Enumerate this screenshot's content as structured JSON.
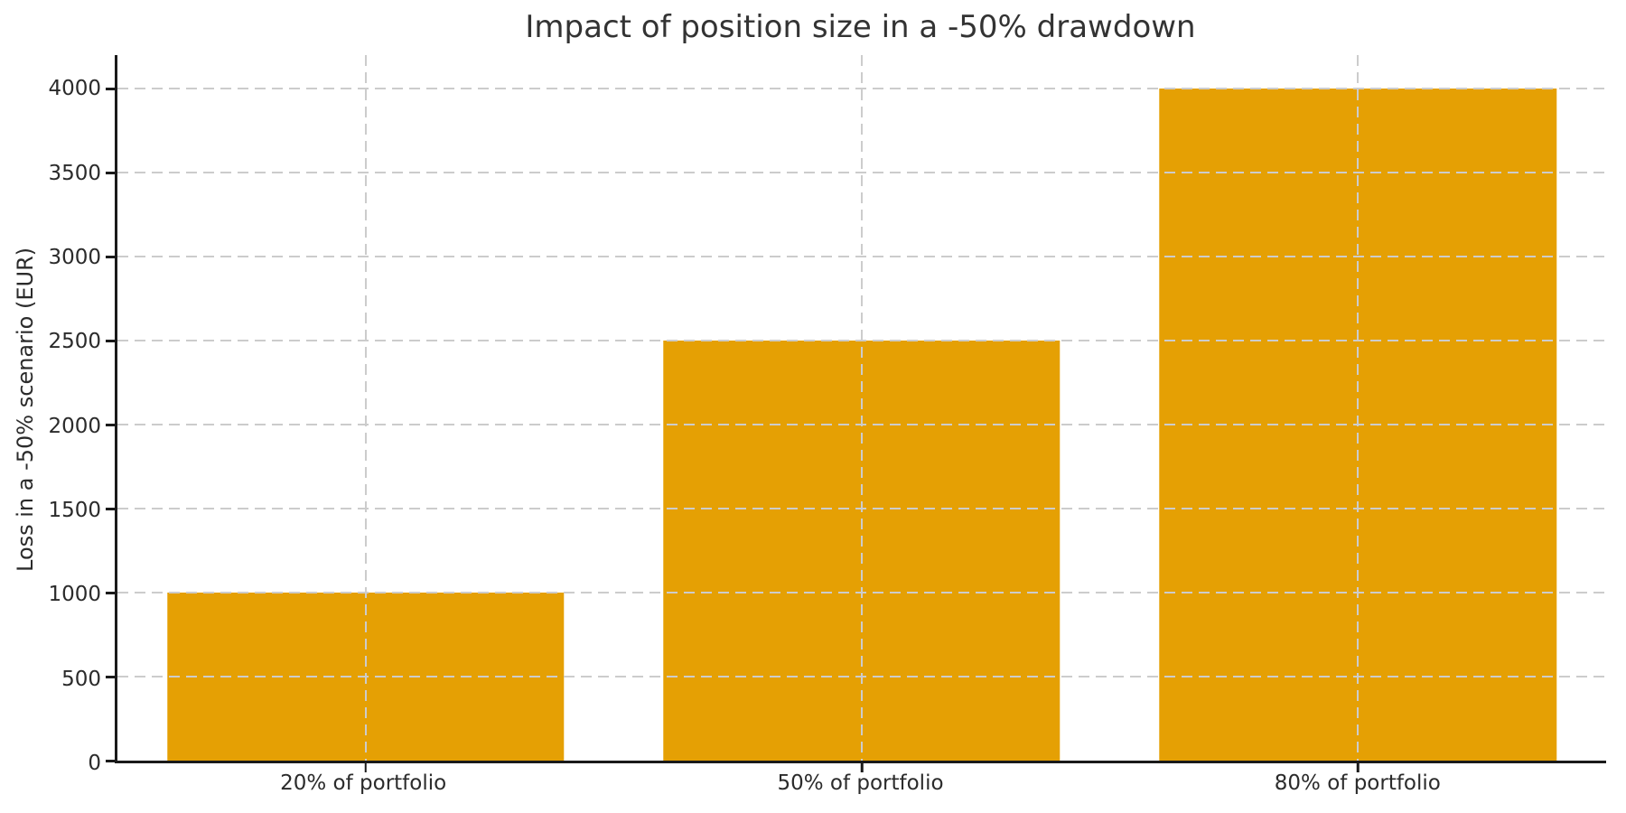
{
  "chart_data": {
    "type": "bar",
    "title": "Impact of position size in a -50% drawdown",
    "xlabel": "",
    "ylabel": "Loss in a -50% scenario (EUR)",
    "categories": [
      "20% of portfolio",
      "50% of portfolio",
      "80% of portfolio"
    ],
    "values": [
      1000,
      2500,
      4000
    ],
    "yticks": [
      0,
      500,
      1000,
      1500,
      2000,
      2500,
      3000,
      3500,
      4000
    ],
    "ylim": [
      0,
      4200
    ],
    "bar_width_fraction": 0.8,
    "grid": "dashed gridlines: horizontal at each y tick, vertical at each category center, drawn above bars",
    "legend": "none",
    "colors": {
      "bar": "#E5A004",
      "grid": "#CCCCCC",
      "spine": "#1A1A1A",
      "text": "#2B2B2B",
      "title": "#333333",
      "background": "#FFFFFF"
    }
  }
}
